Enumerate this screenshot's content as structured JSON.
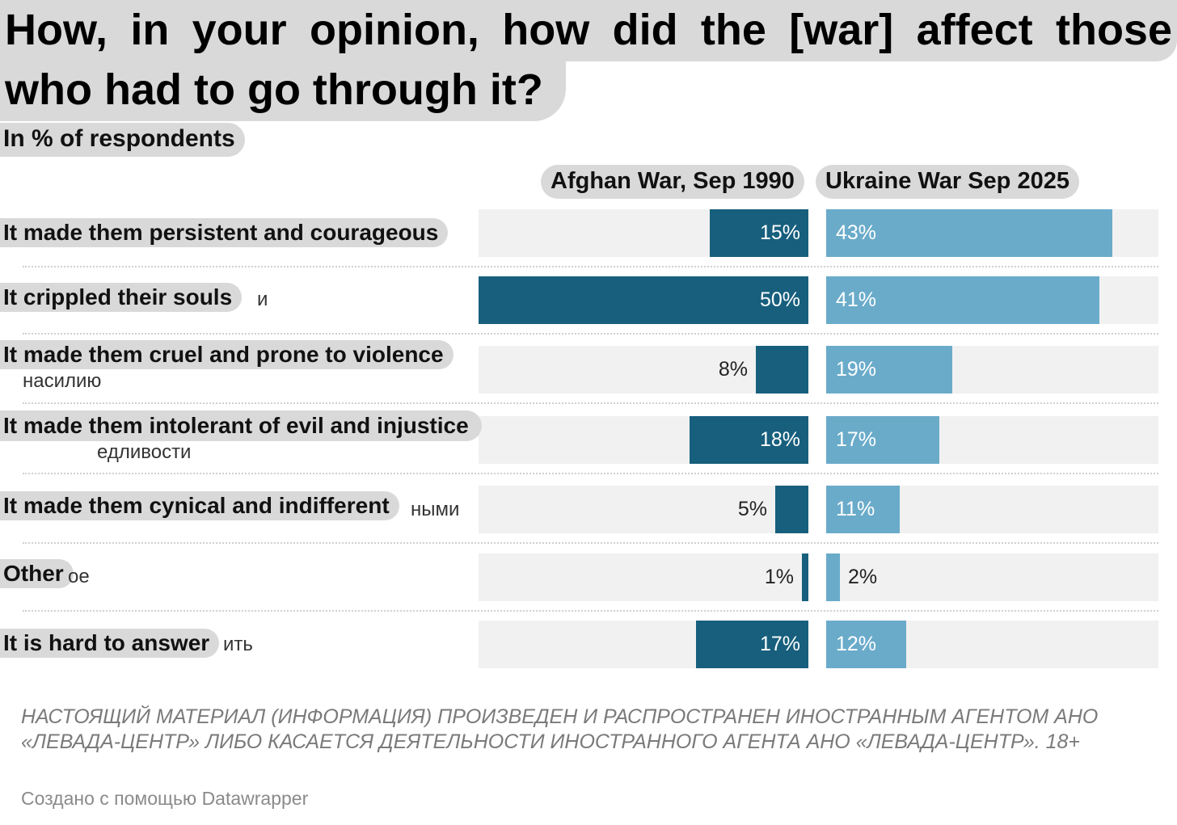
{
  "header": {
    "title": "How, in your opinion, how did the [war] affect those who had to go through it?",
    "subtitle": "In % of respondents"
  },
  "chart_data": {
    "type": "bar",
    "title": "How, in your opinion, how did the [war] affect those who had to go through it?",
    "subtitle": "In % of respondents",
    "unit": "%",
    "categories": [
      "It made them persistent and courageous",
      "It crippled their souls",
      "It made them cruel and prone to violence",
      "It made them intolerant of evil and injustice",
      "It made them cynical and indifferent",
      "Other",
      "It is hard to answer"
    ],
    "series": [
      {
        "name": "Afghan War, Sep 1990",
        "values": [
          15,
          50,
          8,
          18,
          5,
          1,
          17
        ],
        "color": "#175f7d"
      },
      {
        "name": "Ukraine War Sep 2025",
        "values": [
          43,
          41,
          19,
          17,
          11,
          2,
          12
        ],
        "color": "#6aabca"
      }
    ],
    "ylim": [
      0,
      50
    ],
    "xlabel": "",
    "ylabel": ""
  },
  "ghost_fragments": [
    "и",
    "насилию",
    "едливости",
    "ными",
    "ое",
    "ить"
  ],
  "footer": {
    "disclaimer": "НАСТОЯЩИЙ МАТЕРИАЛ (ИНФОРМАЦИЯ) ПРОИЗВЕДЕН И РАСПРОСТРАНЕН ИНОСТРАННЫМ АГЕНТОМ АНО «ЛЕВАДА-ЦЕНТР» ЛИБО КАСАЕТСЯ ДЕЯТЕЛЬНОСТИ ИНОСТРАННОГО АГЕНТА АНО «ЛЕВАДА-ЦЕНТР». 18+",
    "credit": "Создано с помощью Datawrapper"
  },
  "colors": {
    "afghan": "#175f7d",
    "ukraine": "#6aabca",
    "row_bg": "#f1f1f1",
    "highlight": "#d9d9d9"
  }
}
